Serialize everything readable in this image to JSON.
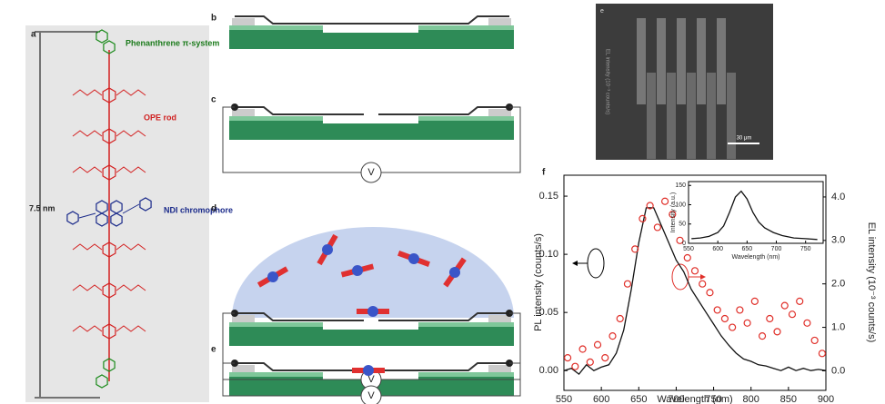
{
  "figure": {
    "panel_a": {
      "label": "a",
      "phenanthrene": "Phenanthrene π-system",
      "ope": "OPE rod",
      "ndi": "NDI chromophore",
      "length": "7.5 nm"
    },
    "panel_b": {
      "label": "b"
    },
    "panel_c": {
      "label": "c",
      "voltage": "V"
    },
    "panel_d": {
      "label": "d",
      "voltage": "V"
    },
    "panel_e": {
      "label": "e",
      "voltage": "V"
    },
    "micrograph": {
      "label": "e",
      "axis_text": "EL intensity (10⁻³ counts/s)",
      "scale_bar": "30 μm"
    },
    "panel_f": {
      "label": "f"
    }
  },
  "chart_data": {
    "type": "line",
    "x_label": "Wavelength (nm)",
    "y_label": "PL intensity (counts/s)",
    "y2_label": "EL intensity (10⁻³ counts/s)",
    "xlim": [
      550,
      900
    ],
    "xticks": [
      550,
      600,
      650,
      700,
      750,
      800,
      850,
      900
    ],
    "ylim": [
      -0.017,
      0.168
    ],
    "yticks": [
      {
        "value": 0,
        "label": "0.00"
      },
      0.05,
      {
        "value": 0.1,
        "label": "0.10"
      },
      0.15
    ],
    "y2lim": [
      -0.45,
      4.5
    ],
    "y2ticks": [
      {
        "value": 0,
        "label": "0.0"
      },
      {
        "value": 1,
        "label": "1.0"
      },
      {
        "value": 2,
        "label": "2.0"
      },
      {
        "value": 3,
        "label": "3.0"
      },
      {
        "value": 4,
        "label": "4.0"
      }
    ],
    "series": [
      {
        "type": "line",
        "color": "#111111",
        "x": [
          550,
          560,
          570,
          580,
          590,
          600,
          610,
          620,
          630,
          640,
          650,
          660,
          670,
          680,
          690,
          700,
          710,
          720,
          730,
          740,
          750,
          760,
          770,
          780,
          790,
          800,
          810,
          820,
          830,
          840,
          850,
          860,
          870,
          880,
          890,
          900
        ],
        "values": [
          0.0,
          0.002,
          -0.003,
          0.005,
          0.0,
          0.003,
          0.005,
          0.015,
          0.035,
          0.07,
          0.11,
          0.14,
          0.14,
          0.125,
          0.11,
          0.095,
          0.085,
          0.07,
          0.06,
          0.05,
          0.04,
          0.03,
          0.022,
          0.015,
          0.01,
          0.008,
          0.005,
          0.004,
          0.002,
          0.0,
          0.003,
          0.0,
          0.002,
          0.0,
          0.001,
          0.0
        ]
      },
      {
        "type": "scatter",
        "color": "#e0302a",
        "axis": "y2",
        "x": [
          555,
          565,
          575,
          585,
          595,
          605,
          615,
          625,
          635,
          645,
          655,
          665,
          675,
          685,
          695,
          705,
          715,
          725,
          735,
          745,
          755,
          765,
          775,
          785,
          795,
          805,
          815,
          825,
          835,
          845,
          855,
          865,
          875,
          885,
          895
        ],
        "values": [
          0.3,
          0.1,
          0.5,
          0.2,
          0.6,
          0.3,
          0.8,
          1.2,
          2.0,
          2.8,
          3.5,
          3.8,
          3.3,
          3.9,
          3.6,
          3.0,
          2.6,
          2.3,
          2.0,
          1.8,
          1.4,
          1.2,
          1.0,
          1.4,
          1.1,
          1.6,
          0.8,
          1.2,
          0.9,
          1.5,
          1.3,
          1.6,
          1.1,
          0.7,
          0.4
        ]
      }
    ],
    "inset": {
      "type": "line",
      "color": "#111111",
      "x_label": "Wavelength (nm)",
      "y_label": "Intensity (a.u.)",
      "xlim": [
        550,
        780
      ],
      "xticks": [
        550,
        600,
        650,
        700,
        750
      ],
      "ylim": [
        0,
        160
      ],
      "yticks": [
        0,
        50,
        100,
        150
      ],
      "x": [
        555,
        570,
        585,
        600,
        610,
        620,
        630,
        640,
        650,
        660,
        670,
        680,
        695,
        710,
        730,
        750,
        770
      ],
      "values": [
        12,
        14,
        18,
        28,
        45,
        80,
        120,
        135,
        115,
        80,
        55,
        40,
        28,
        20,
        14,
        12,
        10
      ]
    }
  }
}
